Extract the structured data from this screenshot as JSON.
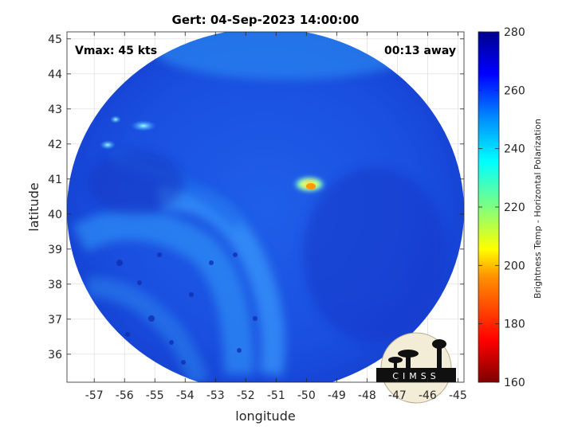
{
  "chart_data": {
    "type": "heatmap",
    "title": "Gert: 04-Sep-2023 14:00:00",
    "annotations": {
      "vmax": "Vmax: 45 kts",
      "time_away": "00:13 away"
    },
    "xlabel": "longitude",
    "ylabel": "latitude",
    "xlim": [
      -57.9,
      -44.8
    ],
    "ylim": [
      35.2,
      45.2
    ],
    "xticks": [
      -57,
      -56,
      -55,
      -54,
      -53,
      -52,
      -51,
      -50,
      -49,
      -48,
      -47,
      -46,
      -45
    ],
    "yticks": [
      36,
      37,
      38,
      39,
      40,
      41,
      42,
      43,
      44,
      45
    ],
    "grid": true,
    "swath": {
      "center_lon": -51.35,
      "center_lat": 40.1,
      "radius_lon": 6.55,
      "radius_lat": 5.2,
      "background_value": 262
    },
    "features": [
      {
        "name": "warm core",
        "lon": -49.9,
        "lat": 40.85,
        "value": 195
      },
      {
        "name": "convective band",
        "lon": -51.8,
        "lat": 38.6,
        "value": 243
      },
      {
        "name": "northwest cells",
        "lon": -55.7,
        "lat": 42.4,
        "value": 236
      }
    ],
    "colorbar": {
      "label": "Brightness Temp - Horizontal Polarization",
      "min": 160,
      "max": 280,
      "ticks": [
        160,
        180,
        200,
        220,
        240,
        260,
        280
      ],
      "colormap": [
        "#7f0000",
        "#ff0000",
        "#ff8000",
        "#ffff00",
        "#80ff80",
        "#00ffff",
        "#0080ff",
        "#0000ff",
        "#00008f"
      ]
    },
    "logo": "CIMSS"
  }
}
